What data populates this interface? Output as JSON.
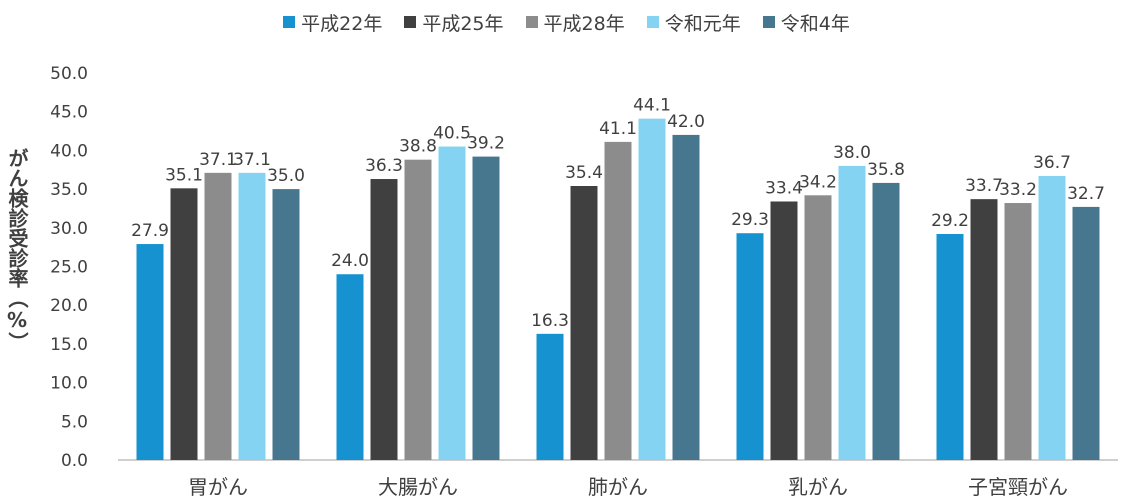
{
  "chart_data": {
    "type": "bar",
    "categories": [
      "胃がん",
      "大腸がん",
      "肺がん",
      "乳がん",
      "子宮頸がん"
    ],
    "series": [
      {
        "name": "平成22年",
        "color": "#1592CF",
        "values": [
          27.9,
          24.0,
          16.3,
          29.3,
          29.2
        ]
      },
      {
        "name": "平成25年",
        "color": "#404040",
        "values": [
          35.1,
          36.3,
          35.4,
          33.4,
          33.7
        ]
      },
      {
        "name": "平成28年",
        "color": "#8C8C8C",
        "values": [
          37.1,
          38.8,
          41.1,
          34.2,
          33.2
        ]
      },
      {
        "name": "令和元年",
        "color": "#84D3F2",
        "values": [
          37.1,
          40.5,
          44.1,
          38.0,
          36.7
        ]
      },
      {
        "name": "令和4年",
        "color": "#46778E",
        "values": [
          35.0,
          39.2,
          42.0,
          35.8,
          32.7
        ]
      }
    ],
    "ylabel": "がん検診受診率（%）",
    "xlabel": "",
    "ylim": [
      0,
      50
    ],
    "yticks": [
      "0.0",
      "5.0",
      "10.0",
      "15.0",
      "20.0",
      "25.0",
      "30.0",
      "35.0",
      "40.0",
      "45.0",
      "50.0"
    ],
    "grid": false,
    "legend_position": "top"
  }
}
